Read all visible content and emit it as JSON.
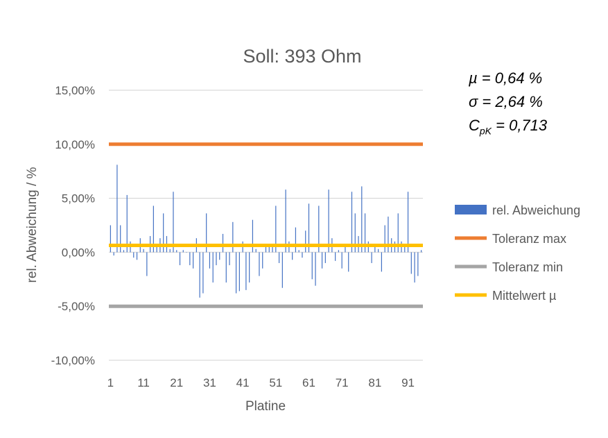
{
  "chart_data": {
    "type": "bar",
    "title": "Soll: 393 Ohm",
    "xlabel": "Platine",
    "ylabel": "rel. Abweichung / %",
    "ylim": [
      -10,
      15
    ],
    "yticks": [
      -10,
      -5,
      0,
      5,
      10,
      15
    ],
    "ytick_labels": [
      "-10,00%",
      "-5,00%",
      "0,00%",
      "5,00%",
      "10,00%",
      "15,00%"
    ],
    "xtick_labels": [
      "1",
      "11",
      "21",
      "31",
      "41",
      "51",
      "61",
      "71",
      "81",
      "91"
    ],
    "xticks": [
      1,
      11,
      21,
      31,
      41,
      51,
      61,
      71,
      81,
      91
    ],
    "n_points": 95,
    "grid": true,
    "legend_position": "right",
    "series": [
      {
        "name": "rel. Abweichung",
        "type": "bar",
        "color": "#4472C4",
        "values": [
          2.5,
          -0.3,
          8.1,
          2.5,
          0.2,
          5.3,
          1.0,
          -0.5,
          -0.7,
          1.3,
          0.3,
          -2.2,
          1.5,
          4.3,
          0.5,
          1.3,
          3.6,
          1.5,
          0.3,
          5.6,
          0.2,
          -1.2,
          0.2,
          0.0,
          -1.2,
          -1.5,
          1.3,
          -4.2,
          -3.8,
          3.6,
          -1.5,
          -2.8,
          -1.2,
          -0.7,
          1.7,
          -2.8,
          -1.2,
          2.8,
          -3.8,
          -3.6,
          1.0,
          -3.5,
          -2.8,
          3.0,
          0.3,
          -2.2,
          -1.5,
          0.5,
          0.5,
          0.5,
          4.3,
          -1.0,
          -3.3,
          5.8,
          1.0,
          -0.7,
          2.3,
          0.2,
          -0.5,
          2.0,
          4.5,
          -2.5,
          -3.1,
          4.3,
          -1.5,
          -1.0,
          5.8,
          1.3,
          -0.8,
          0.2,
          -1.5,
          0.5,
          -1.8,
          5.6,
          3.6,
          1.5,
          6.1,
          3.6,
          1.0,
          -1.0,
          0.7,
          0.3,
          -1.8,
          2.5,
          3.3,
          1.3,
          1.0,
          3.6,
          1.0,
          0.5,
          5.6,
          -2.0,
          -2.8,
          -2.2,
          0.2
        ]
      },
      {
        "name": "Toleranz max",
        "type": "hline",
        "color": "#ED7D31",
        "value": 10
      },
      {
        "name": "Toleranz min",
        "type": "hline",
        "color": "#A5A5A5",
        "value": -5
      },
      {
        "name": "Mittelwert µ",
        "type": "hline",
        "color": "#FFC000",
        "value": 0.64
      }
    ]
  },
  "stats": {
    "mu_text": "µ = 0,64 %",
    "sigma_text": "σ = 2,64 %",
    "cpk_symbol": "C",
    "cpk_sub": "pK",
    "cpk_value": " = 0,713"
  }
}
